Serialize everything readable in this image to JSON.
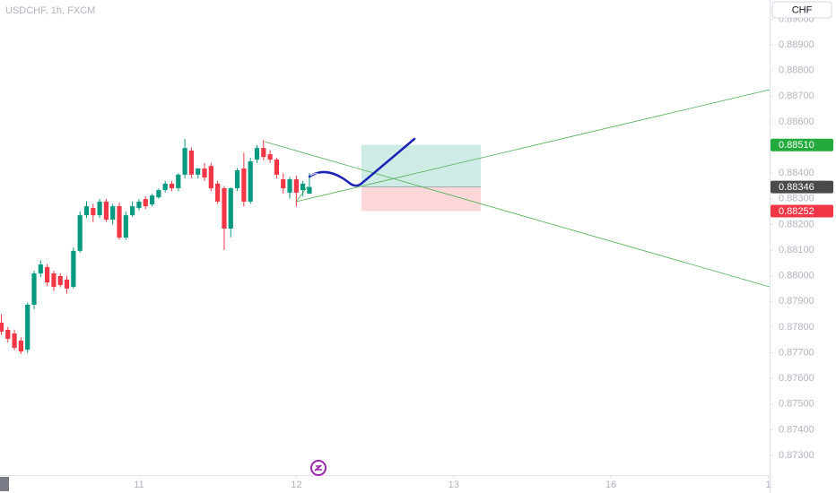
{
  "chart_data": {
    "type": "candlestick",
    "title": "USDCHF, 1h, FXCM",
    "currency": "CHF",
    "categories": [
      null,
      null,
      null,
      null,
      null,
      null,
      null,
      null,
      null,
      null,
      null,
      null,
      null,
      null,
      null,
      null,
      null,
      null,
      null,
      null,
      null,
      null,
      null,
      null,
      null,
      null,
      null,
      null,
      null,
      null,
      null,
      null,
      null,
      null,
      null,
      null,
      null,
      null,
      null,
      null,
      null,
      null,
      null,
      null,
      null,
      null,
      null,
      null
    ],
    "open": [
      0.87817,
      0.87789,
      0.87775,
      0.87747,
      0.87712,
      0.87887,
      0.88009,
      0.88034,
      0.88009,
      0.87999,
      0.87985,
      0.87957,
      0.88097,
      0.88236,
      0.88264,
      0.88236,
      0.88289,
      0.88219,
      0.88271,
      0.88149,
      0.88236,
      0.88264,
      0.88299,
      0.88278,
      0.88306,
      0.88334,
      0.88359,
      0.88341,
      0.88394,
      0.88488,
      0.88394,
      0.88418,
      0.88428,
      0.88359,
      0.88341,
      0.88184,
      0.88341,
      0.88418,
      0.88289,
      0.88453,
      0.88498,
      0.88474,
      0.88453,
      0.88376,
      0.88324,
      0.88376,
      0.88334,
      0.8832
    ],
    "high": [
      0.8785,
      0.878,
      0.8779,
      0.8776,
      0.87895,
      0.8802,
      0.8806,
      0.88045,
      0.8802,
      0.8801,
      0.88,
      0.8811,
      0.8825,
      0.8829,
      0.8828,
      0.883,
      0.883,
      0.8828,
      0.88285,
      0.8825,
      0.8829,
      0.883,
      0.8831,
      0.8832,
      0.8834,
      0.8837,
      0.8837,
      0.884,
      0.88533,
      0.885,
      0.8842,
      0.8844,
      0.8844,
      0.8837,
      0.8835,
      0.88345,
      0.8842,
      0.8848,
      0.8846,
      0.8851,
      0.8853,
      0.8849,
      0.8846,
      0.884,
      0.88385,
      0.8839,
      0.8837,
      0.884
    ],
    "low": [
      0.8777,
      0.8774,
      0.8771,
      0.87695,
      0.877,
      0.8787,
      0.87995,
      0.8796,
      0.8794,
      0.87955,
      0.8793,
      0.8795,
      0.8809,
      0.88225,
      0.8821,
      0.88225,
      0.8821,
      0.882,
      0.8814,
      0.8814,
      0.8823,
      0.88255,
      0.8826,
      0.8827,
      0.883,
      0.88325,
      0.8833,
      0.8833,
      0.8838,
      0.8838,
      0.8838,
      0.8837,
      0.8833,
      0.8828,
      0.881,
      0.8815,
      0.8833,
      0.8827,
      0.8828,
      0.8844,
      0.8845,
      0.8844,
      0.8838,
      0.8832,
      0.883,
      0.8827,
      0.8831,
      0.8833
    ],
    "close": [
      0.87782,
      0.87754,
      0.87719,
      0.87705,
      0.87887,
      0.88009,
      0.88044,
      0.87974,
      0.87957,
      0.87964,
      0.8795,
      0.88097,
      0.88236,
      0.88271,
      0.88236,
      0.88289,
      0.88219,
      0.88271,
      0.88149,
      0.88236,
      0.88271,
      0.88289,
      0.88271,
      0.88313,
      0.88334,
      0.88359,
      0.88341,
      0.88394,
      0.88498,
      0.88394,
      0.88418,
      0.88383,
      0.88341,
      0.88289,
      0.88184,
      0.88341,
      0.88411,
      0.88289,
      0.88446,
      0.88498,
      0.88463,
      0.88453,
      0.88394,
      0.88341,
      0.88376,
      0.88324,
      0.88359,
      0.88346
    ],
    "up_color": "#089981",
    "down_color": "#f23645",
    "xlim": [
      -0.2,
      117.2
    ],
    "xticks": [
      {
        "value": 21,
        "label": "11"
      },
      {
        "value": 45,
        "label": "12"
      },
      {
        "value": 69,
        "label": "13"
      },
      {
        "value": 93,
        "label": "16"
      },
      {
        "value": 117,
        "label": "1"
      }
    ],
    "ylim": [
      0.87223,
      0.89075
    ],
    "yticks": [
      {
        "value": 0.873,
        "label": "0.87300"
      },
      {
        "value": 0.874,
        "label": "0.87400"
      },
      {
        "value": 0.875,
        "label": "0.87500"
      },
      {
        "value": 0.876,
        "label": "0.87600"
      },
      {
        "value": 0.877,
        "label": "0.87700"
      },
      {
        "value": 0.878,
        "label": "0.87800"
      },
      {
        "value": 0.879,
        "label": "0.87900"
      },
      {
        "value": 0.88,
        "label": "0.88000"
      },
      {
        "value": 0.881,
        "label": "0.88100"
      },
      {
        "value": 0.882,
        "label": "0.88200"
      },
      {
        "value": 0.883,
        "label": "0.88300"
      },
      {
        "value": 0.884,
        "label": "0.88400"
      },
      {
        "value": 0.885,
        "label": "0.88500"
      },
      {
        "value": 0.886,
        "label": "0.88600"
      },
      {
        "value": 0.887,
        "label": "0.88700"
      },
      {
        "value": 0.888,
        "label": "0.88800"
      },
      {
        "value": 0.889,
        "label": "0.88900"
      },
      {
        "value": 0.89,
        "label": "0.89000"
      }
    ],
    "grid": false,
    "price_markers": [
      {
        "value": 0.8851,
        "label": "0.88510",
        "color": "#22ab3c"
      },
      {
        "value": 0.88346,
        "label": "0.88346",
        "color": "#4a4a4a"
      },
      {
        "value": 0.88252,
        "label": "0.88252",
        "color": "#f23645"
      }
    ]
  }
}
